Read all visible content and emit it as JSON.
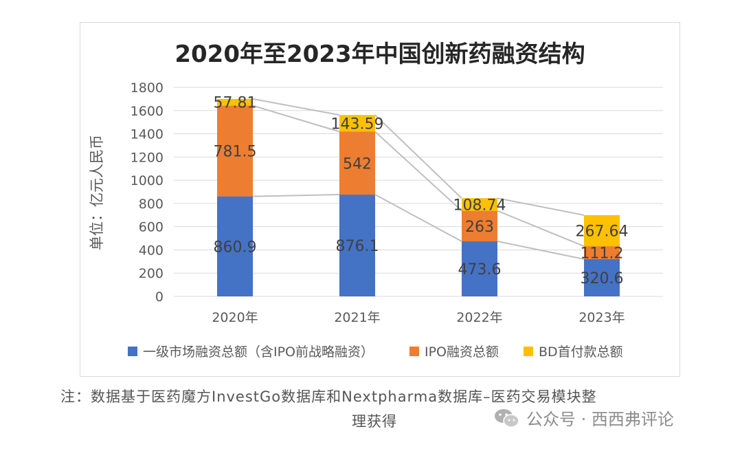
{
  "chart_data": {
    "type": "bar",
    "stacked": true,
    "title": "2020年至2023年中国创新药融资结构",
    "ylabel": "单位：亿元人民币",
    "categories": [
      "2020年",
      "2021年",
      "2022年",
      "2023年"
    ],
    "ylim": [
      0,
      1800
    ],
    "yticks": [
      0,
      200,
      400,
      600,
      800,
      1000,
      1200,
      1400,
      1600,
      1800
    ],
    "grid": true,
    "legend_position": "bottom",
    "series": [
      {
        "name": "一级市场融资总额（含IPO前战略融资）",
        "values": [
          860.9,
          876.1,
          473.6,
          320.6
        ],
        "color": "#4472C4",
        "labels": [
          "860.9",
          "876.1",
          "473.6",
          "320.6"
        ]
      },
      {
        "name": "IPO融资总额",
        "values": [
          781.5,
          542,
          263,
          111.2
        ],
        "color": "#ED7D31",
        "labels": [
          "781.5",
          "542",
          "263",
          "111.2"
        ]
      },
      {
        "name": "BD首付款总额",
        "values": [
          57.81,
          143.59,
          108.74,
          267.64
        ],
        "color": "#FFC000",
        "labels": [
          "57.81",
          "143.59",
          "108.74",
          "267.64"
        ]
      }
    ]
  },
  "note": {
    "line1": "注：数据基于医药魔方InvestGo数据库和Nextpharma数据库–医药交易模块整",
    "line2": "理获得"
  },
  "watermark": {
    "text": "公众号 · 西西弗评论"
  }
}
